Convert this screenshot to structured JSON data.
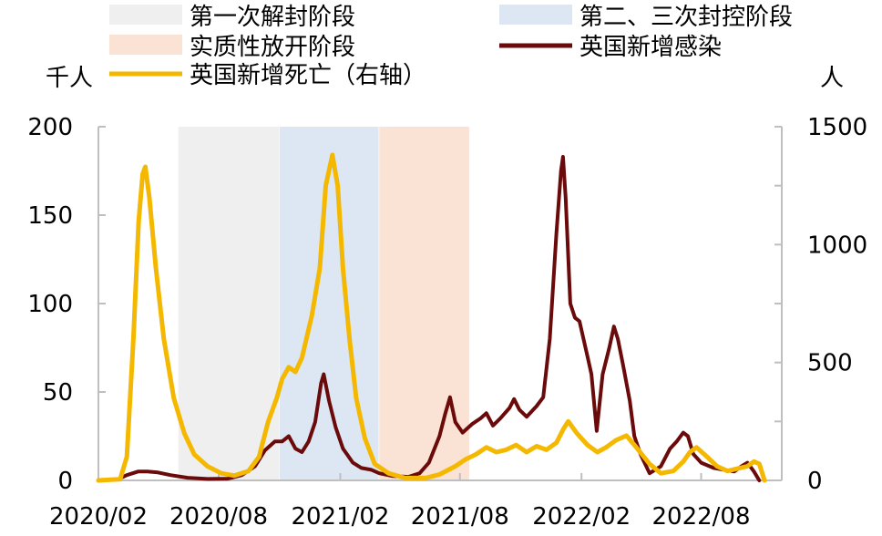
{
  "chart_data": {
    "type": "line",
    "left_unit": "千人",
    "right_unit": "人",
    "left_axis": {
      "ylim": [
        0,
        200
      ],
      "ticks": [
        0,
        50,
        100,
        150,
        200
      ]
    },
    "right_axis": {
      "ylim": [
        0,
        1500
      ],
      "ticks": [
        0,
        500,
        1000,
        1500
      ]
    },
    "x_axis": {
      "range": [
        "2020-02-01",
        "2022-12-01"
      ],
      "tick_labels": [
        "2020/02",
        "2020/08",
        "2021/02",
        "2021/08",
        "2022/02",
        "2022/08"
      ]
    },
    "grid": false,
    "legend_position": "top",
    "periods": [
      {
        "name": "第一次解封阶段",
        "start": "2020-06-01",
        "end": "2020-10-31",
        "color": "#efefef"
      },
      {
        "name": "第二、三次封控阶段",
        "start": "2020-11-01",
        "end": "2021-03-31",
        "color": "#dde7f3"
      },
      {
        "name": "实质性放开阶段",
        "start": "2021-04-01",
        "end": "2021-08-15",
        "color": "#fae2d5"
      }
    ],
    "series": [
      {
        "name": "英国新增感染",
        "axis": "left",
        "color": "#6b0a0a",
        "points": [
          [
            "2020-02-01",
            0
          ],
          [
            "2020-03-01",
            0.5
          ],
          [
            "2020-03-15",
            3
          ],
          [
            "2020-04-01",
            5
          ],
          [
            "2020-04-15",
            5
          ],
          [
            "2020-05-01",
            4.5
          ],
          [
            "2020-05-20",
            3
          ],
          [
            "2020-06-15",
            1.5
          ],
          [
            "2020-07-15",
            0.8
          ],
          [
            "2020-08-15",
            1
          ],
          [
            "2020-09-05",
            3
          ],
          [
            "2020-09-25",
            8
          ],
          [
            "2020-10-10",
            17
          ],
          [
            "2020-10-25",
            22
          ],
          [
            "2020-11-05",
            22
          ],
          [
            "2020-11-15",
            25
          ],
          [
            "2020-11-25",
            18
          ],
          [
            "2020-12-05",
            16
          ],
          [
            "2020-12-15",
            22
          ],
          [
            "2020-12-25",
            33
          ],
          [
            "2021-01-03",
            55
          ],
          [
            "2021-01-07",
            60
          ],
          [
            "2021-01-15",
            45
          ],
          [
            "2021-01-25",
            30
          ],
          [
            "2021-02-05",
            18
          ],
          [
            "2021-02-20",
            10
          ],
          [
            "2021-03-05",
            7
          ],
          [
            "2021-03-20",
            6
          ],
          [
            "2021-04-01",
            4
          ],
          [
            "2021-04-20",
            2.5
          ],
          [
            "2021-05-15",
            2
          ],
          [
            "2021-06-01",
            4
          ],
          [
            "2021-06-15",
            10
          ],
          [
            "2021-07-01",
            25
          ],
          [
            "2021-07-10",
            38
          ],
          [
            "2021-07-17",
            47
          ],
          [
            "2021-07-25",
            33
          ],
          [
            "2021-08-05",
            27
          ],
          [
            "2021-08-20",
            32
          ],
          [
            "2021-09-01",
            35
          ],
          [
            "2021-09-10",
            38
          ],
          [
            "2021-09-20",
            31
          ],
          [
            "2021-10-01",
            35
          ],
          [
            "2021-10-15",
            41
          ],
          [
            "2021-10-22",
            46
          ],
          [
            "2021-10-30",
            40
          ],
          [
            "2021-11-10",
            36
          ],
          [
            "2021-11-25",
            42
          ],
          [
            "2021-12-05",
            47
          ],
          [
            "2021-12-15",
            80
          ],
          [
            "2021-12-25",
            140
          ],
          [
            "2022-01-01",
            175
          ],
          [
            "2022-01-04",
            183
          ],
          [
            "2022-01-08",
            160
          ],
          [
            "2022-01-15",
            100
          ],
          [
            "2022-01-22",
            92
          ],
          [
            "2022-01-29",
            90
          ],
          [
            "2022-02-04",
            80
          ],
          [
            "2022-02-10",
            70
          ],
          [
            "2022-02-16",
            60
          ],
          [
            "2022-02-24",
            28
          ],
          [
            "2022-03-05",
            60
          ],
          [
            "2022-03-15",
            75
          ],
          [
            "2022-03-22",
            87
          ],
          [
            "2022-03-28",
            80
          ],
          [
            "2022-04-05",
            65
          ],
          [
            "2022-04-15",
            45
          ],
          [
            "2022-04-22",
            25
          ],
          [
            "2022-05-01",
            15
          ],
          [
            "2022-05-15",
            4
          ],
          [
            "2022-06-01",
            8
          ],
          [
            "2022-06-15",
            18
          ],
          [
            "2022-06-25",
            22
          ],
          [
            "2022-07-05",
            27
          ],
          [
            "2022-07-12",
            25
          ],
          [
            "2022-07-20",
            15
          ],
          [
            "2022-08-01",
            10
          ],
          [
            "2022-08-20",
            7
          ],
          [
            "2022-09-05",
            6
          ],
          [
            "2022-09-20",
            5
          ],
          [
            "2022-10-01",
            8
          ],
          [
            "2022-10-10",
            10
          ],
          [
            "2022-10-20",
            5
          ],
          [
            "2022-10-28",
            0
          ]
        ]
      },
      {
        "name": "英国新增死亡（右轴）",
        "axis": "right",
        "color": "#f5b800",
        "points": [
          [
            "2020-02-01",
            0
          ],
          [
            "2020-03-05",
            5
          ],
          [
            "2020-03-15",
            100
          ],
          [
            "2020-03-25",
            600
          ],
          [
            "2020-04-02",
            1100
          ],
          [
            "2020-04-08",
            1300
          ],
          [
            "2020-04-12",
            1330
          ],
          [
            "2020-04-18",
            1200
          ],
          [
            "2020-04-28",
            900
          ],
          [
            "2020-05-10",
            600
          ],
          [
            "2020-05-25",
            350
          ],
          [
            "2020-06-10",
            200
          ],
          [
            "2020-06-25",
            110
          ],
          [
            "2020-07-15",
            60
          ],
          [
            "2020-08-05",
            30
          ],
          [
            "2020-08-25",
            20
          ],
          [
            "2020-09-15",
            40
          ],
          [
            "2020-10-01",
            100
          ],
          [
            "2020-10-15",
            250
          ],
          [
            "2020-10-28",
            350
          ],
          [
            "2020-11-05",
            430
          ],
          [
            "2020-11-15",
            480
          ],
          [
            "2020-11-25",
            460
          ],
          [
            "2020-12-05",
            520
          ],
          [
            "2020-12-20",
            700
          ],
          [
            "2021-01-01",
            900
          ],
          [
            "2021-01-10",
            1250
          ],
          [
            "2021-01-20",
            1380
          ],
          [
            "2021-01-28",
            1250
          ],
          [
            "2021-02-05",
            900
          ],
          [
            "2021-02-15",
            600
          ],
          [
            "2021-02-25",
            350
          ],
          [
            "2021-03-10",
            180
          ],
          [
            "2021-03-25",
            70
          ],
          [
            "2021-04-15",
            30
          ],
          [
            "2021-05-10",
            10
          ],
          [
            "2021-06-10",
            10
          ],
          [
            "2021-07-01",
            25
          ],
          [
            "2021-07-25",
            60
          ],
          [
            "2021-08-10",
            90
          ],
          [
            "2021-08-25",
            110
          ],
          [
            "2021-09-10",
            140
          ],
          [
            "2021-09-25",
            120
          ],
          [
            "2021-10-10",
            130
          ],
          [
            "2021-10-25",
            150
          ],
          [
            "2021-11-10",
            120
          ],
          [
            "2021-11-25",
            145
          ],
          [
            "2021-12-10",
            130
          ],
          [
            "2021-12-25",
            160
          ],
          [
            "2022-01-05",
            220
          ],
          [
            "2022-01-12",
            250
          ],
          [
            "2022-01-25",
            200
          ],
          [
            "2022-02-10",
            150
          ],
          [
            "2022-02-25",
            120
          ],
          [
            "2022-03-10",
            140
          ],
          [
            "2022-03-25",
            170
          ],
          [
            "2022-04-10",
            190
          ],
          [
            "2022-04-25",
            140
          ],
          [
            "2022-05-15",
            70
          ],
          [
            "2022-06-01",
            30
          ],
          [
            "2022-06-20",
            40
          ],
          [
            "2022-07-05",
            80
          ],
          [
            "2022-07-15",
            120
          ],
          [
            "2022-07-25",
            140
          ],
          [
            "2022-08-10",
            100
          ],
          [
            "2022-08-25",
            60
          ],
          [
            "2022-09-10",
            40
          ],
          [
            "2022-09-25",
            50
          ],
          [
            "2022-10-10",
            60
          ],
          [
            "2022-10-20",
            80
          ],
          [
            "2022-10-28",
            70
          ],
          [
            "2022-11-05",
            0
          ]
        ]
      }
    ],
    "legend": [
      {
        "label": "第一次解封阶段",
        "kind": "band",
        "color": "#efefef"
      },
      {
        "label": "第二、三次封控阶段",
        "kind": "band",
        "color": "#dde7f3"
      },
      {
        "label": "实质性放开阶段",
        "kind": "band",
        "color": "#fae2d5"
      },
      {
        "label": "英国新增感染",
        "kind": "line",
        "color": "#6b0a0a"
      },
      {
        "label": "英国新增死亡（右轴）",
        "kind": "line",
        "color": "#f5b800"
      }
    ]
  }
}
